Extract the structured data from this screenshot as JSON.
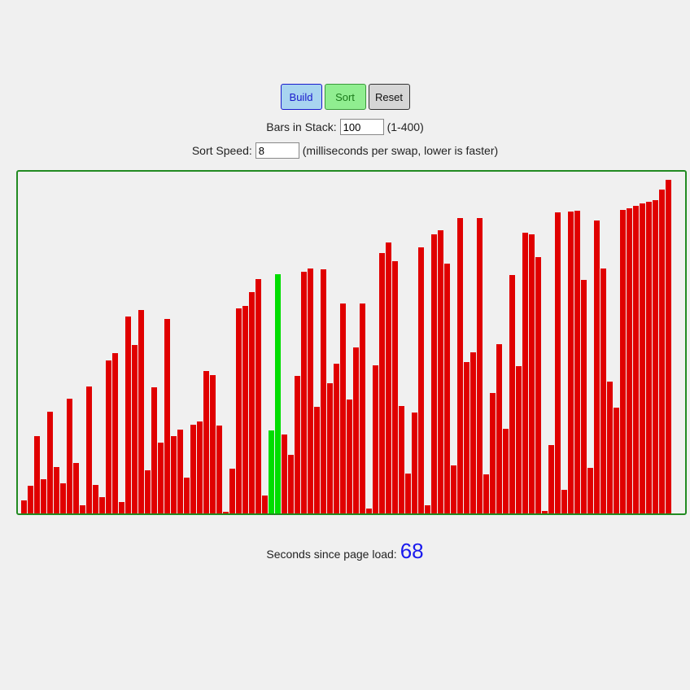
{
  "toolbar": {
    "build_label": "Build",
    "sort_label": "Sort",
    "reset_label": "Reset"
  },
  "settings": {
    "bars_label": "Bars in Stack:",
    "bars_value": "100",
    "bars_range": "(1-400)",
    "speed_label": "Sort Speed:",
    "speed_value": "8",
    "speed_hint": "(milliseconds per swap, lower is faster)"
  },
  "colors": {
    "bar": "#e00000",
    "active_bar": "#00dd00",
    "border": "#228b22"
  },
  "chart_data": {
    "type": "bar",
    "ylim": [
      0,
      410
    ],
    "active_indices": [
      38,
      39
    ],
    "values": [
      16,
      34,
      95,
      42,
      125,
      57,
      37,
      141,
      62,
      10,
      156,
      35,
      20,
      188,
      197,
      14,
      242,
      207,
      250,
      53,
      155,
      87,
      239,
      95,
      103,
      44,
      109,
      113,
      175,
      170,
      108,
      2,
      55,
      252,
      255,
      272,
      288,
      22,
      102,
      294,
      97,
      72,
      169,
      297,
      301,
      131,
      300,
      160,
      184,
      258,
      140,
      204,
      258,
      6,
      182,
      320,
      333,
      310,
      132,
      49,
      124,
      327,
      10,
      343,
      348,
      307,
      59,
      363,
      186,
      198,
      363,
      48,
      148,
      208,
      104,
      293,
      181,
      345,
      343,
      315,
      3,
      84,
      370,
      29,
      371,
      372,
      287,
      56,
      360,
      301,
      162,
      130,
      373,
      375,
      378,
      381,
      383,
      385,
      398,
      410
    ]
  },
  "timer": {
    "label": "Seconds since page load:",
    "value": "68"
  }
}
